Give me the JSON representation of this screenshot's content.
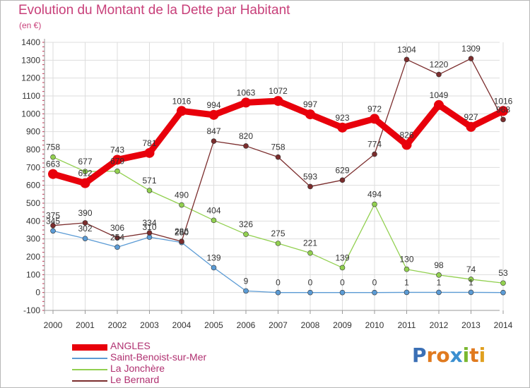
{
  "title": "Evolution du Montant de la Dette par Habitant",
  "unit": "(en €)",
  "logo": {
    "letters": [
      "P",
      "r",
      "o",
      "x",
      "i",
      "t",
      "i"
    ],
    "colors": [
      "#3a6fb5",
      "#e07a1f",
      "#e07a1f",
      "#3a8fd0",
      "#7ab830",
      "#e07a1f",
      "#e0a020"
    ]
  },
  "chart_data": {
    "type": "line",
    "x": [
      "2000",
      "2001",
      "2002",
      "2003",
      "2004",
      "2005",
      "2006",
      "2007",
      "2008",
      "2009",
      "2010",
      "2011",
      "2012",
      "2013",
      "2014"
    ],
    "ylim": [
      -100,
      1400
    ],
    "yticks": [
      "-100",
      "0",
      "100",
      "200",
      "300",
      "400",
      "500",
      "600",
      "700",
      "800",
      "900",
      "1000",
      "1100",
      "1200",
      "1300",
      "1400"
    ],
    "grid": true,
    "legend_position": "bottom-left",
    "series": [
      {
        "name": "ANGLES",
        "color": "#e8000b",
        "values": [
          663,
          612,
          743,
          781,
          1016,
          994,
          1063,
          1072,
          997,
          923,
          972,
          826,
          1049,
          927,
          1016
        ],
        "labels": [
          "663",
          "612",
          "743",
          "781",
          "1016",
          "994",
          "1063",
          "1072",
          "997",
          "923",
          "972",
          "826",
          "1049",
          "927",
          "1016"
        ]
      },
      {
        "name": "Saint-Benoist-sur-Mer",
        "color": "#5b9bd5",
        "values": [
          345,
          302,
          254,
          310,
          280,
          139,
          9,
          0,
          0,
          0,
          0,
          1,
          1,
          1,
          0
        ],
        "labels": [
          "345",
          "302",
          "254",
          "310",
          "280",
          "139",
          "9",
          "0",
          "0",
          "0",
          "0",
          "1",
          "1",
          "1",
          ""
        ]
      },
      {
        "name": "La Jonchère",
        "color": "#92d050",
        "values": [
          758,
          677,
          679,
          571,
          490,
          404,
          326,
          275,
          221,
          139,
          494,
          130,
          98,
          74,
          53
        ],
        "labels": [
          "758",
          "677",
          "679",
          "571",
          "490",
          "404",
          "326",
          "275",
          "221",
          "139",
          "494",
          "130",
          "98",
          "74",
          "53"
        ]
      },
      {
        "name": "Le Bernard",
        "color": "#7b2d2d",
        "values": [
          375,
          390,
          306,
          334,
          286,
          847,
          820,
          758,
          593,
          629,
          774,
          1304,
          1220,
          1309,
          968
        ],
        "labels": [
          "375",
          "390",
          "306",
          "334",
          "286",
          "847",
          "820",
          "758",
          "593",
          "629",
          "774",
          "1304",
          "1220",
          "1309",
          "968"
        ]
      }
    ]
  }
}
